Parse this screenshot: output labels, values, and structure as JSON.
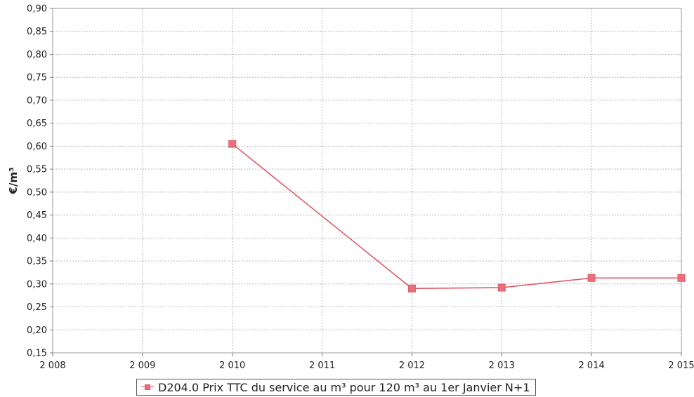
{
  "chart_data": {
    "type": "line",
    "title": "",
    "xlabel": "",
    "ylabel": "€/m³",
    "xlim": [
      2008,
      2015
    ],
    "ylim": [
      0.15,
      0.9
    ],
    "x_ticks": [
      2008,
      2009,
      2010,
      2011,
      2012,
      2013,
      2014,
      2015
    ],
    "x_tick_labels": [
      "2 008",
      "2 009",
      "2 010",
      "2 011",
      "2 012",
      "2 013",
      "2 014",
      "2 015"
    ],
    "y_ticks": [
      0.15,
      0.2,
      0.25,
      0.3,
      0.35,
      0.4,
      0.45,
      0.5,
      0.55,
      0.6,
      0.65,
      0.7,
      0.75,
      0.8,
      0.85,
      0.9
    ],
    "y_tick_labels": [
      "0,15",
      "0,20",
      "0,25",
      "0,30",
      "0,35",
      "0,40",
      "0,45",
      "0,50",
      "0,55",
      "0,60",
      "0,65",
      "0,70",
      "0,75",
      "0,80",
      "0,85",
      "0,90"
    ],
    "grid": true,
    "legend_position": "bottom-center",
    "series": [
      {
        "name": "D204.0 Prix TTC du service au m³ pour 120 m³ au 1er Janvier N+1",
        "color": "#e05a68",
        "marker_color": "#e8707c",
        "x": [
          2010,
          2012,
          2013,
          2014,
          2015
        ],
        "values": [
          0.605,
          0.29,
          0.292,
          0.313,
          0.313
        ]
      }
    ]
  }
}
